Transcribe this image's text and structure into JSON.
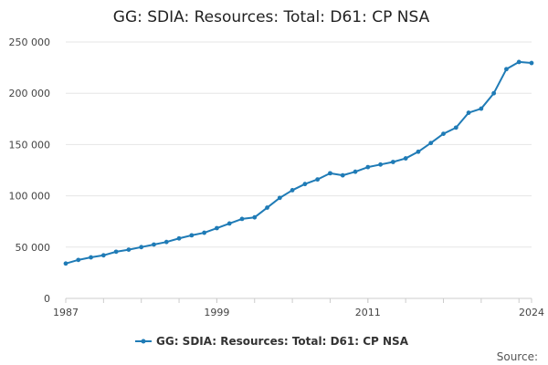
{
  "chart_data": {
    "type": "line",
    "title": "GG: SDIA: Resources: Total: D61: CP NSA",
    "xlabel": "",
    "ylabel": "",
    "x": [
      1987,
      1988,
      1989,
      1990,
      1991,
      1992,
      1993,
      1994,
      1995,
      1996,
      1997,
      1998,
      1999,
      2000,
      2001,
      2002,
      2003,
      2004,
      2005,
      2006,
      2007,
      2008,
      2009,
      2010,
      2011,
      2012,
      2013,
      2014,
      2015,
      2016,
      2017,
      2018,
      2019,
      2020,
      2021,
      2022,
      2023,
      2024
    ],
    "series": [
      {
        "name": "GG: SDIA: Resources: Total: D61: CP NSA",
        "color": "#1f7bb6",
        "values": [
          34000,
          37500,
          40000,
          42000,
          45500,
          47500,
          50000,
          52500,
          55000,
          58500,
          61500,
          64000,
          68500,
          73000,
          77500,
          79000,
          88500,
          98000,
          105500,
          111500,
          116000,
          122000,
          120000,
          123500,
          128000,
          130500,
          133000,
          136500,
          143000,
          151500,
          160500,
          166500,
          181000,
          185000,
          200000,
          223500,
          230500,
          229500
        ]
      }
    ],
    "xlim": [
      1987,
      2024
    ],
    "ylim": [
      0,
      250000
    ],
    "x_ticks": [
      1987,
      1999,
      2011,
      2024
    ],
    "y_ticks": [
      0,
      50000,
      100000,
      150000,
      200000,
      250000
    ],
    "x_tick_labels": [
      "1987",
      "1999",
      "2011",
      "2024"
    ],
    "y_tick_labels": [
      "0",
      "50 000",
      "100 000",
      "150 000",
      "200 000",
      "250 000"
    ],
    "grid": true,
    "legend_position": "bottom-center"
  },
  "source_label": "Source:"
}
